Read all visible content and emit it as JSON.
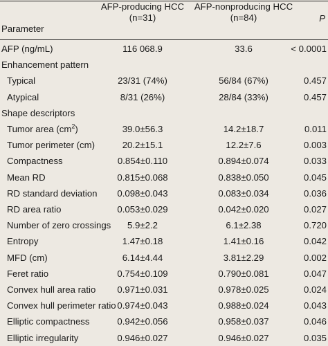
{
  "header": {
    "parameter": "Parameter",
    "col1_line1": "AFP-producing HCC",
    "col1_line2": "(n=31)",
    "col2_line1": "AFP-nonproducing HCC",
    "col2_line2": "(n=84)",
    "p": "P"
  },
  "rows": [
    {
      "label": "AFP (ng/mL)",
      "v1": "116 068.9",
      "v2": "33.6",
      "p": "< 0.0001"
    },
    {
      "label": "Enhancement pattern",
      "v1": "",
      "v2": "",
      "p": ""
    },
    {
      "label": "Typical",
      "v1": "23/31 (74%)",
      "v2": "56/84 (67%)",
      "p": "0.457"
    },
    {
      "label": "Atypical",
      "v1": "8/31 (26%)",
      "v2": "28/84 (33%)",
      "p": "0.457"
    },
    {
      "label": "Shape descriptors",
      "v1": "",
      "v2": "",
      "p": ""
    },
    {
      "label": "Tumor area (cm",
      "label_sup": "2",
      "label_end": ")",
      "v1": "39.0±56.3",
      "v2": "14.2±18.7",
      "p": "0.011"
    },
    {
      "label": "Tumor perimeter (cm)",
      "v1": "20.2±15.1",
      "v2": "12.2±7.6",
      "p": "0.003"
    },
    {
      "label": "Compactness",
      "v1": "0.854±0.110",
      "v2": "0.894±0.074",
      "p": "0.033"
    },
    {
      "label": "Mean RD",
      "v1": "0.815±0.068",
      "v2": "0.838±0.050",
      "p": "0.045"
    },
    {
      "label": "RD standard deviation",
      "v1": "0.098±0.043",
      "v2": "0.083±0.034",
      "p": "0.036"
    },
    {
      "label": "RD area ratio",
      "v1": "0.053±0.029",
      "v2": "0.042±0.020",
      "p": "0.027"
    },
    {
      "label": "Number of zero crossings",
      "v1": "5.9±2.2",
      "v2": "6.1±2.38",
      "p": "0.720"
    },
    {
      "label": "Entropy",
      "v1": "1.47±0.18",
      "v2": "1.41±0.16",
      "p": "0.042"
    },
    {
      "label": "MFD (cm)",
      "v1": "6.14±4.44",
      "v2": "3.81±2.29",
      "p": "0.002"
    },
    {
      "label": "Feret ratio",
      "v1": "0.754±0.109",
      "v2": "0.790±0.081",
      "p": "0.047"
    },
    {
      "label": "Convex hull area ratio",
      "v1": "0.971±0.031",
      "v2": "0.978±0.025",
      "p": "0.024"
    },
    {
      "label": "Convex hull perimeter ratio",
      "v1": "0.974±0.043",
      "v2": "0.988±0.024",
      "p": "0.043"
    },
    {
      "label": "Elliptic compactness",
      "v1": "0.942±0.056",
      "v2": "0.958±0.037",
      "p": "0.046"
    },
    {
      "label": "Elliptic irregularity",
      "v1": "0.946±0.027",
      "v2": "0.946±0.027",
      "p": "0.035"
    }
  ]
}
